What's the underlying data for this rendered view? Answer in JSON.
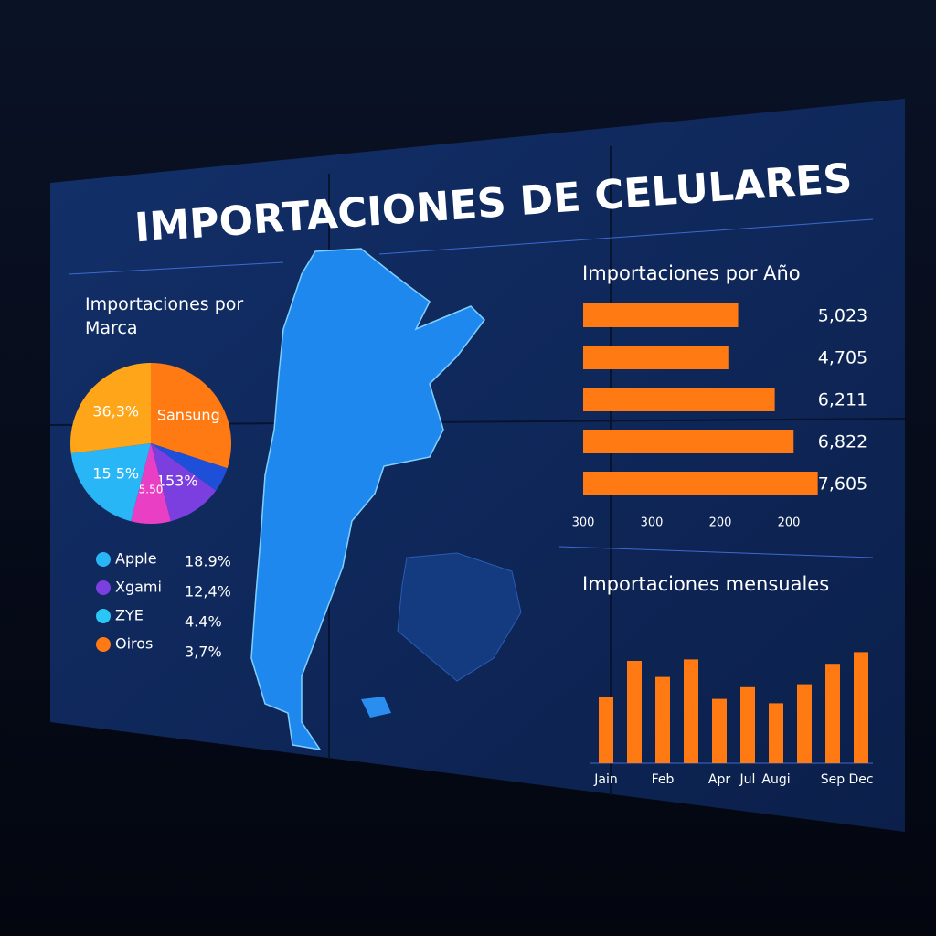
{
  "title": "IMPORTACIONES DE CELULARES",
  "chart_data": [
    {
      "type": "pie",
      "title": "Importaciones por Marca",
      "categories": [
        "Sansung",
        null,
        "153%",
        "5.50",
        "15 5%",
        "36,3%"
      ],
      "values": [
        30,
        5,
        11,
        8,
        19,
        27
      ],
      "colors": [
        "#ff7a12",
        "#1e4fd8",
        "#7b3fe0",
        "#e83fc4",
        "#29b6f6",
        "#ffa51a"
      ],
      "legend": [
        {
          "name": "Apple",
          "color": "#29b6f6",
          "share": "18.9%"
        },
        {
          "name": "Xgami",
          "color": "#7b3fe0",
          "share": "12,4%"
        },
        {
          "name": "ZYE",
          "color": "#29c6f6",
          "share": "4.4%"
        },
        {
          "name": "Oiros",
          "color": "#ff7a12",
          "share": "3,7%"
        }
      ]
    },
    {
      "type": "hbar",
      "title": "Importaciones por Año",
      "categories": [
        null,
        null,
        null,
        null,
        null
      ],
      "values": [
        5023,
        4705,
        6211,
        6822,
        7605
      ],
      "value_labels": [
        "5,023",
        "4,705",
        "6,211",
        "6,822",
        "7,605"
      ],
      "color": "#ff7a12",
      "xlim": [
        0,
        8000
      ],
      "axis_labels": [
        "300",
        "300",
        "200",
        "200"
      ]
    },
    {
      "type": "bar",
      "title": "Importaciones mensuales",
      "categories": [
        "Jain",
        null,
        "Feb",
        null,
        "Apr",
        "Jul",
        "Augi",
        null,
        "Sep",
        "Dec"
      ],
      "values": [
        45,
        70,
        59,
        71,
        44,
        52,
        41,
        54,
        68,
        76
      ],
      "color": "#ff7a12",
      "ylim": [
        0,
        100
      ]
    }
  ]
}
